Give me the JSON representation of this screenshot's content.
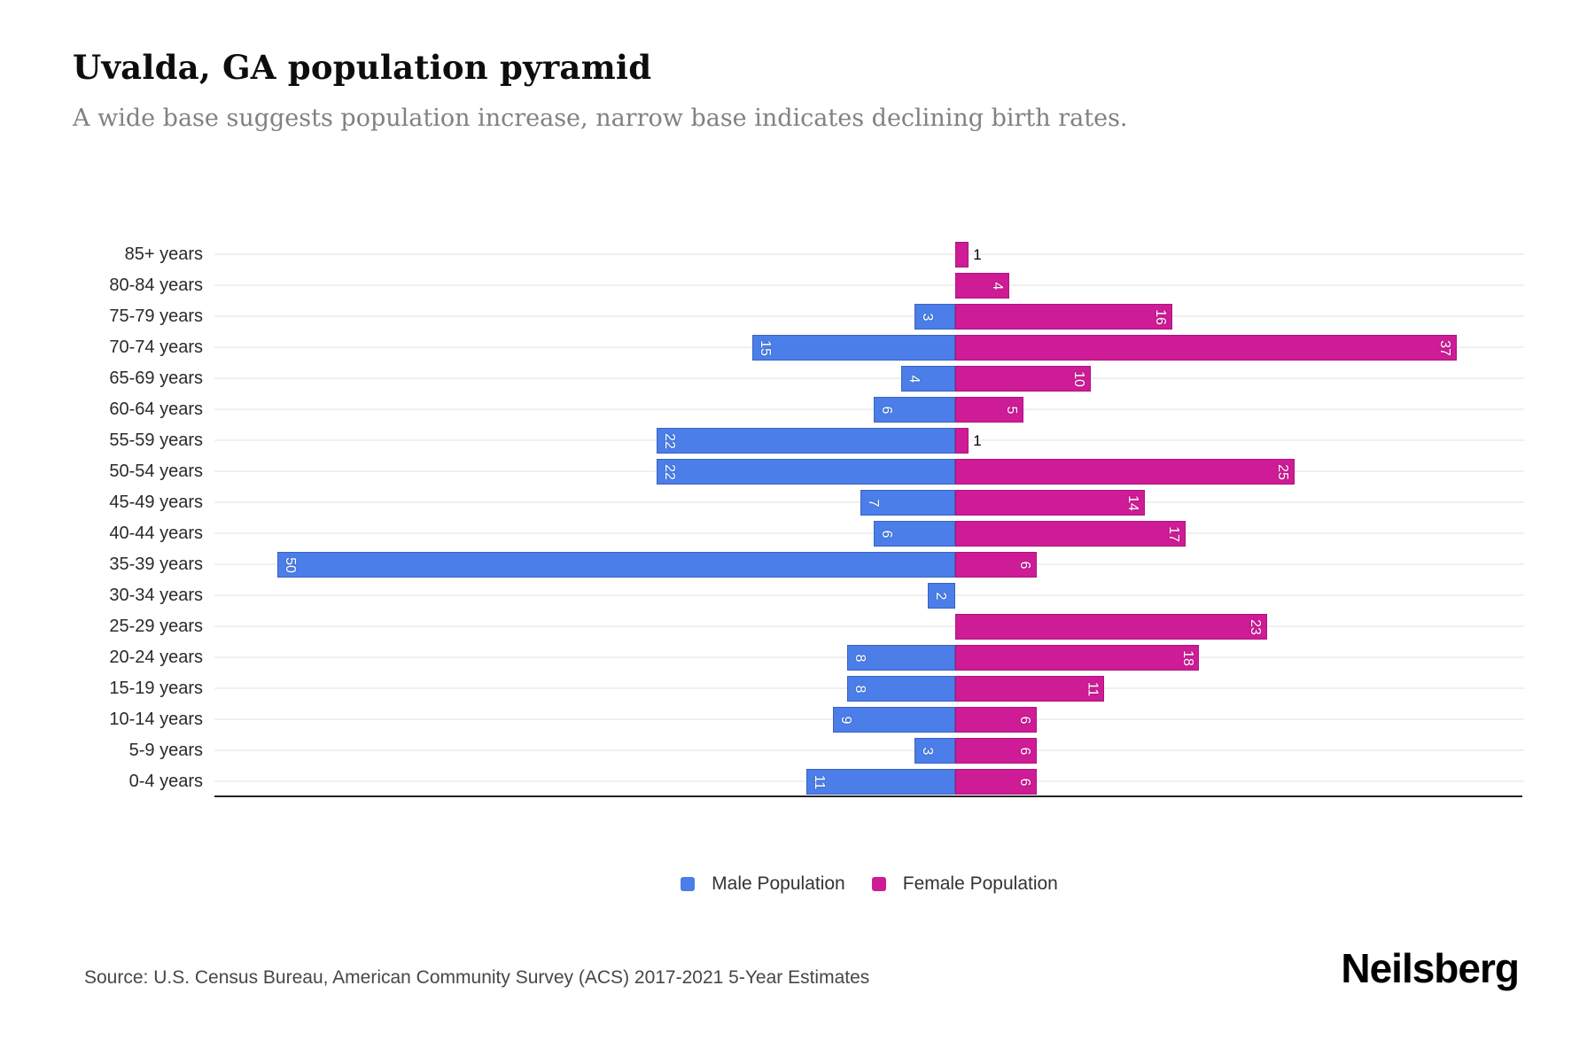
{
  "header": {
    "title": "Uvalda, GA population pyramid",
    "subtitle": "A wide base suggests population increase, narrow base indicates declining birth rates."
  },
  "chart_data": {
    "type": "bar",
    "subtype": "population-pyramid",
    "orientation": "horizontal",
    "title": "Uvalda, GA population pyramid",
    "xlabel": "",
    "ylabel": "",
    "grid": true,
    "legend_position": "bottom",
    "categories": [
      "85+ years",
      "80-84 years",
      "75-79 years",
      "70-74 years",
      "65-69 years",
      "60-64 years",
      "55-59 years",
      "50-54 years",
      "45-49 years",
      "40-44 years",
      "35-39 years",
      "30-34 years",
      "25-29 years",
      "20-24 years",
      "15-19 years",
      "10-14 years",
      "5-9 years",
      "0-4 years"
    ],
    "series": [
      {
        "name": "Male Population",
        "side": "left",
        "color": "#4B7EE8",
        "values": [
          0,
          0,
          3,
          15,
          4,
          6,
          22,
          22,
          7,
          6,
          50,
          2,
          0,
          8,
          8,
          9,
          3,
          11
        ]
      },
      {
        "name": "Female Population",
        "side": "right",
        "color": "#CE1B96",
        "values": [
          1,
          4,
          16,
          37,
          10,
          5,
          1,
          25,
          14,
          17,
          6,
          0,
          23,
          18,
          11,
          6,
          6,
          6
        ]
      }
    ],
    "value_labels": "shown on each bar, rotated 90deg inside bar; values of 1 shown upright in black outside the bar"
  },
  "legend": {
    "items": [
      {
        "label": "Male Population",
        "color": "#4B7EE8"
      },
      {
        "label": "Female Population",
        "color": "#CE1B96"
      }
    ]
  },
  "footer": {
    "source": "Source: U.S. Census Bureau, American Community Survey (ACS) 2017-2021 5-Year Estimates",
    "brand": "Neilsberg"
  },
  "colors": {
    "male": "#4B7EE8",
    "female": "#CE1B96",
    "gridline": "#f0f0f0",
    "axis": "#222222",
    "subtitle_text": "#818181"
  }
}
